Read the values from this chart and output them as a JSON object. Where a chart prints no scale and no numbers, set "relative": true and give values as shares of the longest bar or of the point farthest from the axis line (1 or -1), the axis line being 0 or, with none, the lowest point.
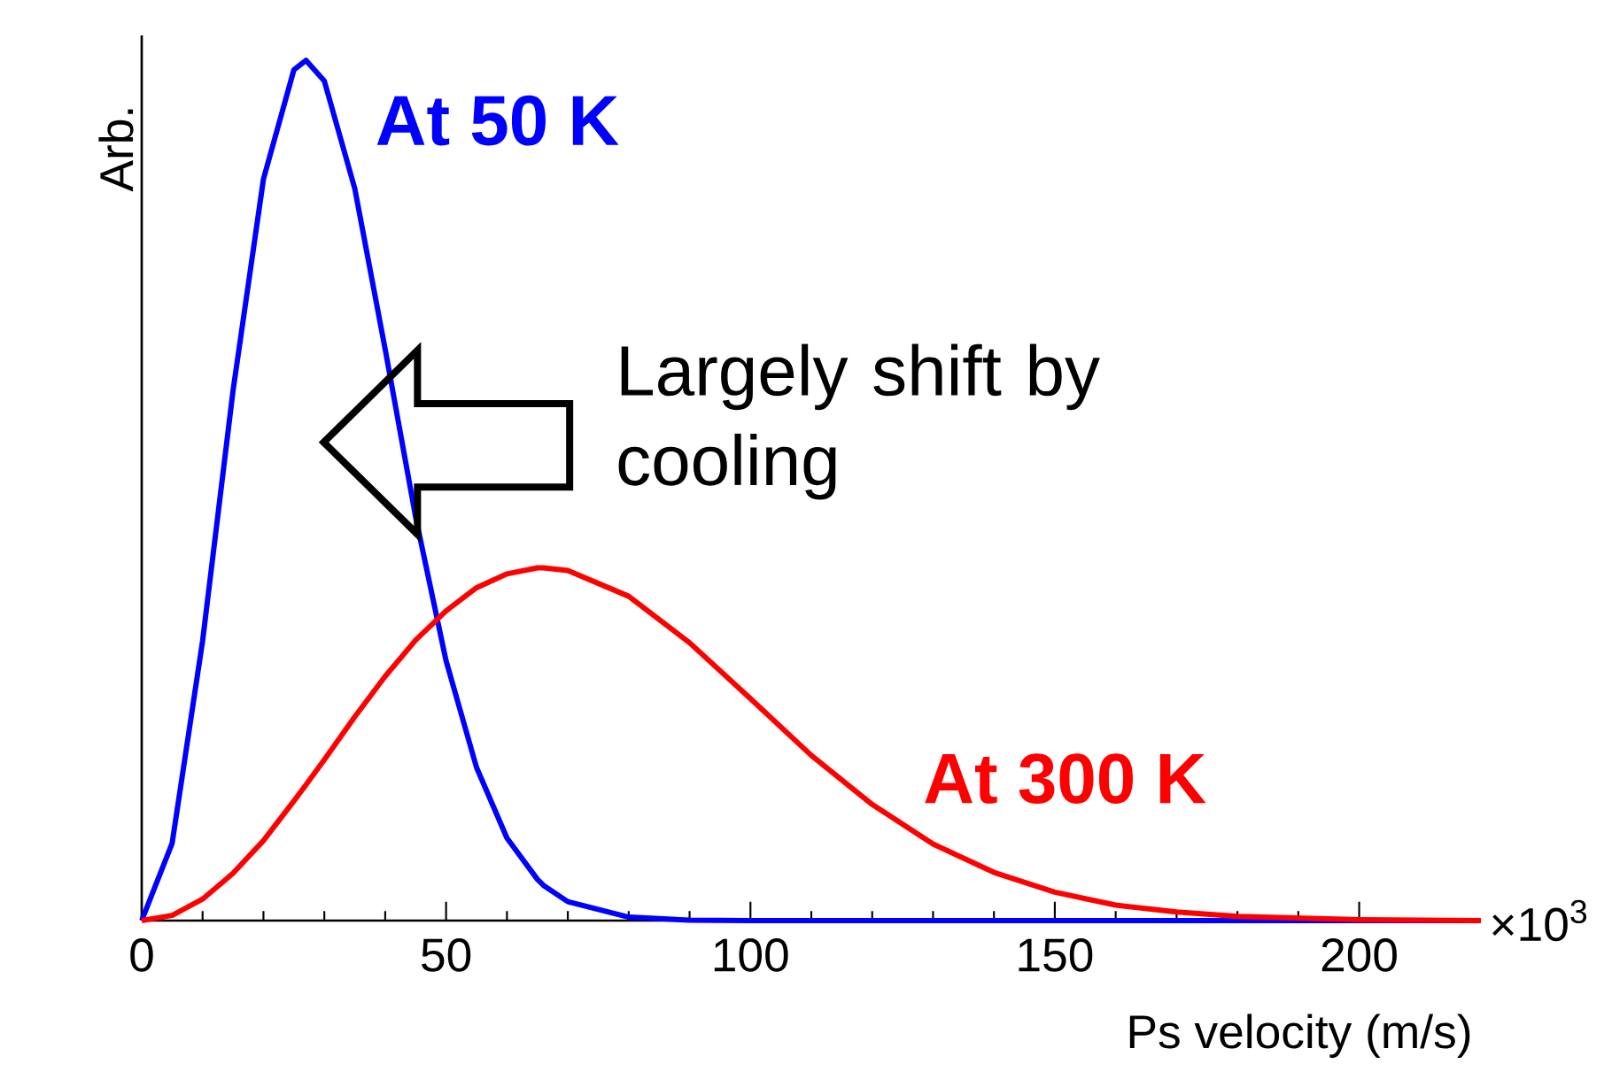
{
  "chart_data": {
    "type": "line",
    "xlabel": "Ps velocity (m/s)",
    "ylabel": "Arb.",
    "relative": true,
    "x": [
      0,
      5,
      10,
      15,
      20,
      25,
      27,
      30,
      35,
      40,
      45,
      50,
      55,
      60,
      65,
      66,
      70,
      80,
      90,
      100,
      110,
      120,
      130,
      140,
      150,
      160,
      170,
      180,
      200,
      220
    ],
    "xlim": [
      0,
      220
    ],
    "xticks": [
      0,
      50,
      100,
      150,
      200
    ],
    "series": [
      {
        "name": "At 50 K",
        "color": "#0000ff",
        "values": [
          0,
          0.09,
          0.325,
          0.616,
          0.862,
          0.989,
          1,
          0.976,
          0.851,
          0.664,
          0.469,
          0.302,
          0.178,
          0.096,
          0.048,
          0.041,
          0.022,
          0.004,
          0.0005,
          0,
          0,
          0,
          0,
          0,
          0,
          0,
          0,
          0,
          0,
          0
        ]
      },
      {
        "name": "At 300 K",
        "color": "#ff0000",
        "values": [
          0,
          0.006,
          0.025,
          0.055,
          0.093,
          0.139,
          0.158,
          0.187,
          0.237,
          0.284,
          0.326,
          0.36,
          0.387,
          0.403,
          0.41,
          0.41,
          0.407,
          0.377,
          0.323,
          0.258,
          0.192,
          0.135,
          0.089,
          0.056,
          0.033,
          0.018,
          0.01,
          0.005,
          0.001,
          0
        ]
      }
    ],
    "annotations": [
      "Largely shift by cooling",
      "×10$^{3}$"
    ]
  }
}
